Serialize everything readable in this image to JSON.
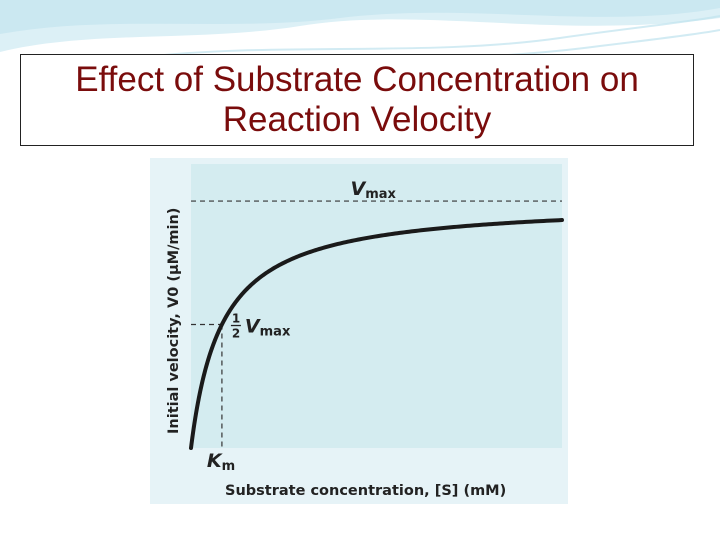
{
  "slide": {
    "title_line1": "Effect of Substrate Concentration on",
    "title_line2": "Reaction Velocity",
    "title_color": "#7a0c0c",
    "background_wave_color": "#bfe3ee"
  },
  "chart_data": {
    "type": "line",
    "title": "",
    "xlabel": "Substrate concentration, [S] (mM)",
    "ylabel": "Initial velocity, V0 (μM/min)",
    "vmax": 1.0,
    "km": 1.0,
    "xlim": [
      0,
      12
    ],
    "ylim": [
      0,
      1.15
    ],
    "grid": false,
    "legend": "none",
    "plot_background": "#d4ecf0",
    "frame_background": "#e6f3f7",
    "curve_color": "#1a1a1a",
    "guide_line_style": "dashed",
    "annotations": {
      "vmax_label": "V",
      "vmax_sub": "max",
      "half_num": "1",
      "half_den": "2",
      "half_label": "V",
      "half_sub": "max",
      "km_label": "K",
      "km_sub": "m"
    },
    "series": [
      {
        "x": [
          0,
          0.1,
          0.25,
          0.5,
          0.75,
          1.0,
          1.5,
          2.0,
          3.0,
          4.0,
          5.0,
          6.0,
          7.0,
          8.0,
          9.0,
          10.0,
          11.0,
          12.0
        ],
        "y": [
          0,
          0.091,
          0.2,
          0.333,
          0.429,
          0.5,
          0.6,
          0.667,
          0.75,
          0.8,
          0.833,
          0.857,
          0.875,
          0.889,
          0.9,
          0.909,
          0.917,
          0.923
        ]
      }
    ]
  }
}
